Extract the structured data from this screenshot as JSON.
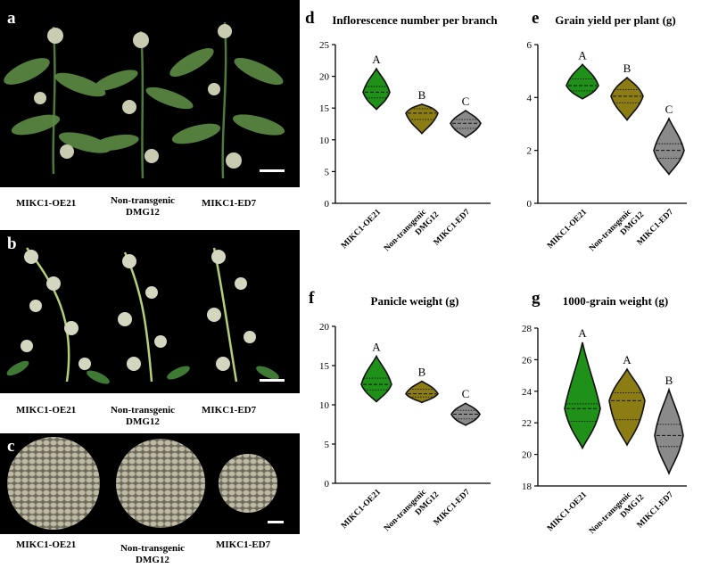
{
  "panels": {
    "a": {
      "label": "a",
      "captions": [
        "MIKC1-OE21",
        "Non-transgenic",
        "DMG12",
        "MIKC1-ED7"
      ]
    },
    "b": {
      "label": "b",
      "captions": [
        "MIKC1-OE21",
        "Non-transgenic",
        "DMG12",
        "MIKC1-ED7"
      ]
    },
    "c": {
      "label": "c",
      "captions": [
        "MIKC1-OE21",
        "Non-transgenic",
        "DMG12",
        "MIKC1-ED7"
      ]
    }
  },
  "colors": {
    "oe21": "#1f9118",
    "non_transgenic": "#8c7c14",
    "ed7": "#8a8a8a",
    "photo_bg": "#000000"
  },
  "chart_data": [
    {
      "id": "d",
      "label": "d",
      "type": "violin",
      "title": "Inflorescence number per branch",
      "categories": [
        "MIKC1-OE21",
        "Non-transgenic DMG12",
        "MIKC1-ED7"
      ],
      "ylim": [
        0,
        25
      ],
      "yticks": [
        0,
        5,
        10,
        15,
        20,
        25
      ],
      "series": [
        {
          "median": 17.5,
          "q1": 16.6,
          "q3": 18.4,
          "min": 14.8,
          "max": 21.2,
          "letter": "A"
        },
        {
          "median": 14.2,
          "q1": 13.2,
          "q3": 14.9,
          "min": 11.0,
          "max": 15.6,
          "letter": "B"
        },
        {
          "median": 12.6,
          "q1": 11.8,
          "q3": 13.2,
          "min": 10.4,
          "max": 14.6,
          "letter": "C"
        }
      ]
    },
    {
      "id": "e",
      "label": "e",
      "type": "violin",
      "title": "Grain yield per plant (g)",
      "categories": [
        "MIKC1-OE21",
        "Non-transgenic DMG12",
        "MIKC1-ED7"
      ],
      "ylim": [
        0,
        6
      ],
      "yticks": [
        0,
        2,
        4,
        6
      ],
      "series": [
        {
          "median": 4.45,
          "q1": 4.25,
          "q3": 4.7,
          "min": 3.95,
          "max": 5.25,
          "letter": "A"
        },
        {
          "median": 4.05,
          "q1": 3.8,
          "q3": 4.3,
          "min": 3.15,
          "max": 4.75,
          "letter": "B"
        },
        {
          "median": 2.0,
          "q1": 1.7,
          "q3": 2.25,
          "min": 1.1,
          "max": 3.2,
          "letter": "C"
        }
      ]
    },
    {
      "id": "f",
      "label": "f",
      "type": "violin",
      "title": "Panicle weight (g)",
      "categories": [
        "MIKC1-OE21",
        "Non-transgenic DMG12",
        "MIKC1-ED7"
      ],
      "ylim": [
        0,
        20
      ],
      "yticks": [
        0,
        5,
        10,
        15,
        20
      ],
      "series": [
        {
          "median": 12.6,
          "q1": 11.9,
          "q3": 13.4,
          "min": 10.4,
          "max": 16.2,
          "letter": "A"
        },
        {
          "median": 11.4,
          "q1": 11.0,
          "q3": 12.0,
          "min": 10.3,
          "max": 13.0,
          "letter": "B"
        },
        {
          "median": 8.8,
          "q1": 8.2,
          "q3": 9.3,
          "min": 7.4,
          "max": 10.2,
          "letter": "C"
        }
      ]
    },
    {
      "id": "g",
      "label": "g",
      "type": "violin",
      "title": "1000-grain weight (g)",
      "categories": [
        "MIKC1-OE21",
        "Non-transgenic DMG12",
        "MIKC1-ED7"
      ],
      "ylim": [
        18,
        28
      ],
      "yticks": [
        18,
        20,
        22,
        24,
        26,
        28
      ],
      "series": [
        {
          "median": 22.9,
          "q1": 22.1,
          "q3": 23.2,
          "min": 20.4,
          "max": 27.1,
          "letter": "A"
        },
        {
          "median": 23.4,
          "q1": 22.2,
          "q3": 23.9,
          "min": 20.6,
          "max": 25.4,
          "letter": "A"
        },
        {
          "median": 21.2,
          "q1": 20.5,
          "q3": 21.9,
          "min": 18.8,
          "max": 24.1,
          "letter": "B"
        }
      ]
    }
  ]
}
